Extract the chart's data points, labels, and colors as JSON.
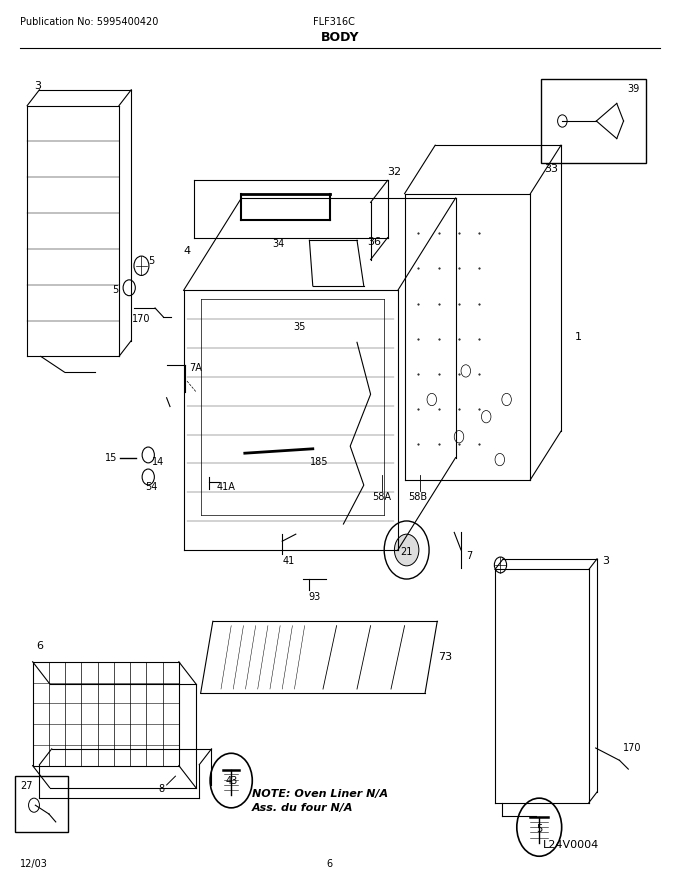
{
  "title": "BODY",
  "pub_no": "Publication No: 5995400420",
  "model": "FLF316C",
  "date": "12/03",
  "page": "6",
  "diagram_id": "L24V0004",
  "note_line1": "NOTE: Oven Liner N/A",
  "note_line2": "Ass. du four N/A",
  "bg_color": "#ffffff",
  "line_color": "#000000"
}
